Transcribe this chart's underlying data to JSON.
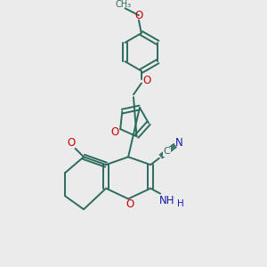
{
  "background_color": "#ebebeb",
  "bond_color": "#2d6b5e",
  "O_color": "#cc0000",
  "N_color": "#1a1aaa",
  "lw": 1.4,
  "xlim": [
    0,
    10
  ],
  "ylim": [
    0,
    10
  ]
}
